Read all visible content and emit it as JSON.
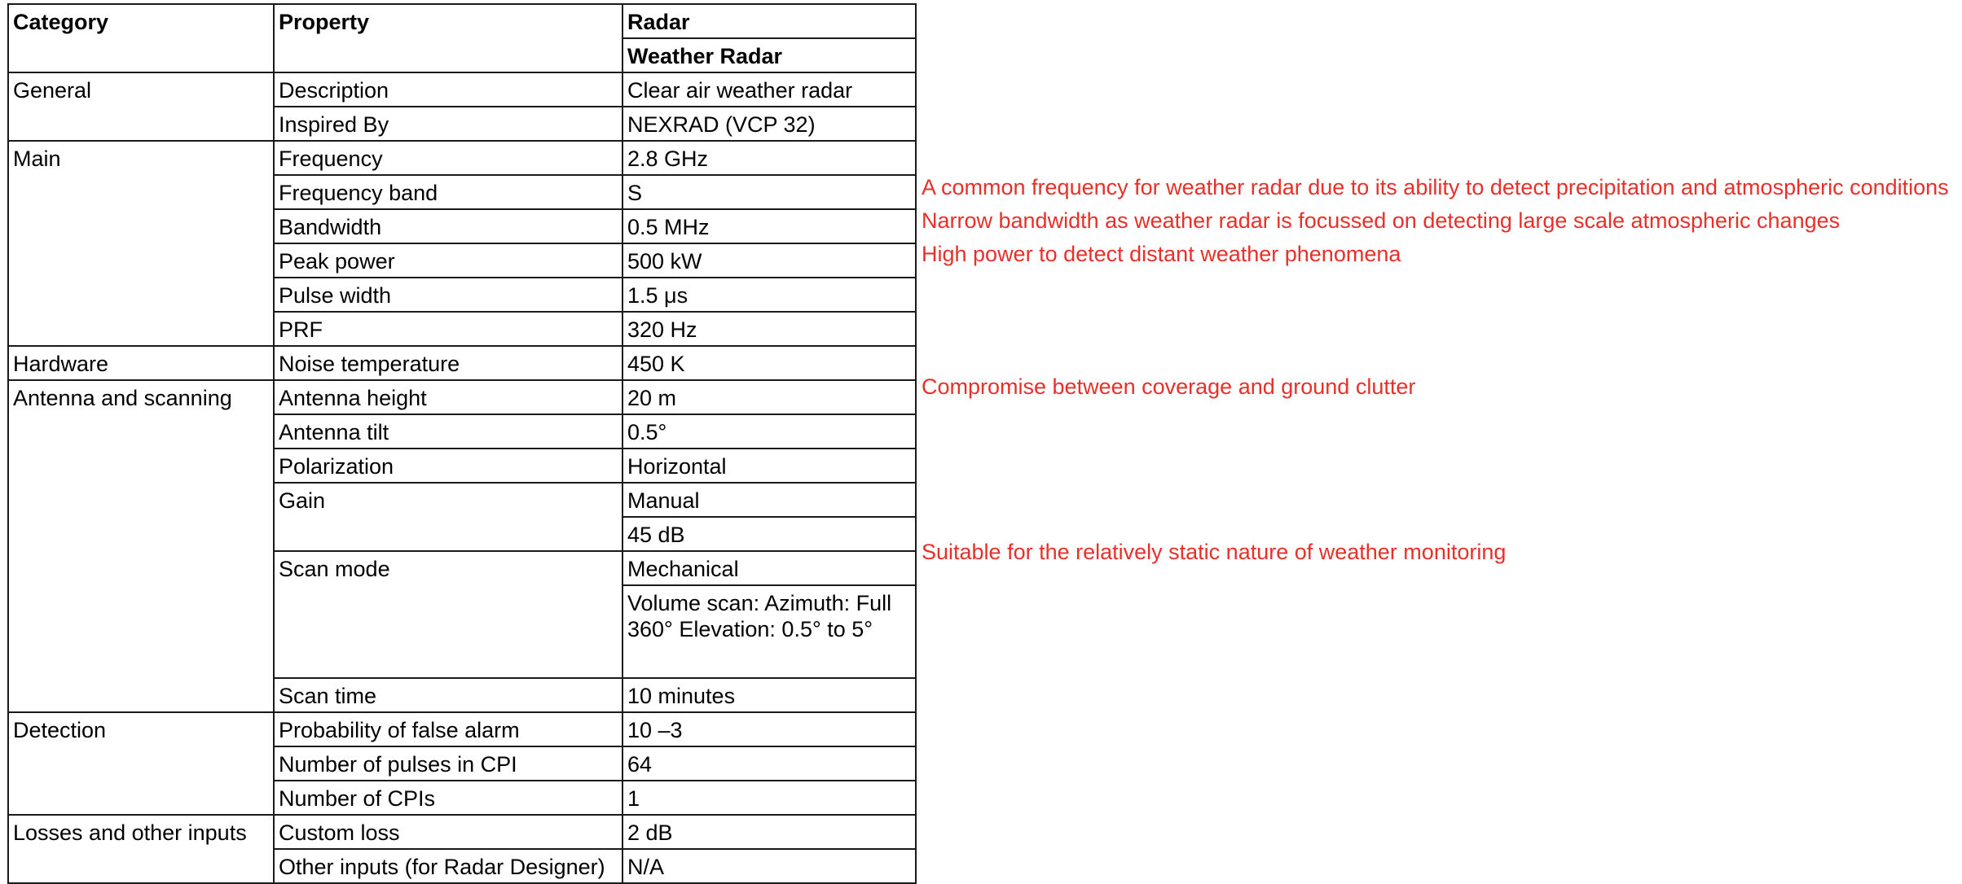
{
  "headers": {
    "category": "Category",
    "property": "Property",
    "radar": "Radar",
    "radar_name": "Weather Radar"
  },
  "rows": {
    "general_description": {
      "category": "General",
      "property": "Description",
      "value": "Clear air weather radar"
    },
    "general_inspired": {
      "property": "Inspired By",
      "value": "NEXRAD (VCP 32)"
    },
    "main_frequency": {
      "category": "Main",
      "property": "Frequency",
      "value": "2.8 GHz"
    },
    "main_band": {
      "property": "Frequency band",
      "value": "S"
    },
    "main_bandwidth": {
      "property": "Bandwidth",
      "value": "0.5 MHz"
    },
    "main_peak_power": {
      "property": "Peak power",
      "value": "500 kW"
    },
    "main_pulse_width": {
      "property": "Pulse width",
      "value": "1.5 μs"
    },
    "main_prf": {
      "property": "PRF",
      "value": "320 Hz"
    },
    "hardware_noise": {
      "category": "Hardware",
      "property": "Noise temperature",
      "value": "450 K"
    },
    "ant_height": {
      "category": "Antenna and scanning",
      "property": "Antenna height",
      "value": "20 m"
    },
    "ant_tilt": {
      "property": "Antenna tilt",
      "value": "0.5°"
    },
    "ant_polarization": {
      "property": "Polarization",
      "value": "Horizontal"
    },
    "ant_gain": {
      "property": "Gain",
      "value": "Manual",
      "value2": "45 dB"
    },
    "ant_scan_mode": {
      "property": "Scan mode",
      "value": "Mechanical",
      "value2": "Volume scan: Azimuth: Full 360° Elevation: 0.5° to 5°"
    },
    "ant_scan_time": {
      "property": "Scan time",
      "value": "10 minutes"
    },
    "det_pfa": {
      "category": "Detection",
      "property": "Probability of false alarm",
      "value": "10 –3"
    },
    "det_pulses": {
      "property": "Number of pulses in CPI",
      "value": "64"
    },
    "det_cpis": {
      "property": "Number of CPIs",
      "value": "1"
    },
    "loss_custom": {
      "category": "Losses and other inputs",
      "property": "Custom loss",
      "value": "2 dB"
    },
    "loss_other": {
      "property": "Other inputs (for Radar Designer)",
      "value": "N/A"
    }
  },
  "notes": {
    "frequency_band": "A common frequency for weather radar due to its ability to detect precipitation and atmospheric conditions",
    "bandwidth": "Narrow bandwidth as weather radar is focussed on detecting large scale atmospheric changes",
    "peak_power": "High power to detect distant weather phenomena",
    "antenna_height": "Compromise between coverage and ground clutter",
    "scan_mode": "Suitable for the relatively static nature of weather monitoring"
  },
  "colors": {
    "note_text": "#e8302a",
    "border": "#1a1a1a"
  }
}
